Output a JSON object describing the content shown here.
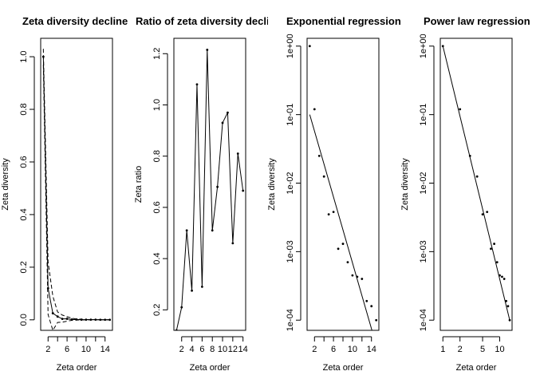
{
  "chart_data": [
    {
      "type": "line",
      "title": "Zeta diversity decline",
      "xlabel": "Zeta order",
      "ylabel": "Zeta diversity",
      "xlim": [
        0.44,
        15.56
      ],
      "ylim": [
        -0.04,
        1.07
      ],
      "yscale": "linear",
      "xticks": [
        2,
        4,
        6,
        8,
        10,
        12,
        14
      ],
      "xtick_labels": [
        "2",
        "6",
        "10",
        "14"
      ],
      "xtick_labeled": [
        2,
        6,
        10,
        14
      ],
      "yticks": [
        0.0,
        0.2,
        0.4,
        0.6,
        0.8,
        1.0
      ],
      "ytick_labels": [
        "0.0",
        "0.2",
        "0.4",
        "0.6",
        "0.8",
        "1.0"
      ],
      "series": [
        {
          "style": "solid",
          "points": true,
          "x": [
            1,
            2,
            3,
            4,
            5,
            6,
            7,
            8,
            9,
            10,
            11,
            12,
            13,
            14,
            15
          ],
          "y": [
            1.0,
            0.12,
            0.025,
            0.0125,
            0.0035,
            0.0038,
            0.0011,
            0.0013,
            0.0007,
            0.00045,
            0.00043,
            0.0004,
            0.00019,
            0.00016,
            0.0001
          ]
        },
        {
          "style": "dashed",
          "points": false,
          "x": [
            1,
            2,
            3,
            4,
            5,
            6,
            7,
            8,
            9,
            10,
            11,
            12,
            13,
            14,
            15
          ],
          "y": [
            1.03,
            0.22,
            0.09,
            0.03,
            0.018,
            0.012,
            0.006,
            0.003,
            0.002,
            0.001,
            0.0008,
            0.0006,
            0.0004,
            0.0003,
            0.0002
          ]
        },
        {
          "style": "dashed",
          "points": false,
          "x": [
            1,
            2,
            3,
            4,
            5,
            6,
            7,
            8,
            9,
            10,
            11,
            12,
            13,
            14,
            15
          ],
          "y": [
            0.97,
            0.02,
            -0.04,
            -0.01,
            -0.009,
            -0.005,
            -0.002,
            -0.001,
            -0.0005,
            -0.0002,
            -0.0001,
            0,
            0,
            0,
            0
          ]
        }
      ]
    },
    {
      "type": "line",
      "title": "Ratio of zeta diversity decline",
      "xlabel": "Zeta order",
      "ylabel": "Zeta ratio",
      "xlim": [
        0.48,
        14.52
      ],
      "ylim": [
        0.12,
        1.26
      ],
      "yscale": "linear",
      "xticks": [
        2,
        4,
        6,
        8,
        10,
        12,
        14
      ],
      "xtick_labels": [
        "2",
        "4",
        "6",
        "8",
        "10",
        "12",
        "14"
      ],
      "xtick_labeled": [
        2,
        4,
        6,
        8,
        10,
        12,
        14
      ],
      "yticks": [
        0.2,
        0.4,
        0.6,
        0.8,
        1.0,
        1.2
      ],
      "ytick_labels": [
        "0.2",
        "0.4",
        "0.6",
        "0.8",
        "1.0",
        "1.2"
      ],
      "series": [
        {
          "style": "solid",
          "points": true,
          "x": [
            1,
            2,
            3,
            4,
            5,
            6,
            7,
            8,
            9,
            10,
            11,
            12,
            13,
            14
          ],
          "y": [
            0.12,
            0.21,
            0.51,
            0.275,
            1.08,
            0.29,
            1.215,
            0.51,
            0.68,
            0.93,
            0.97,
            0.46,
            0.81,
            0.665
          ]
        }
      ]
    },
    {
      "type": "scatter",
      "title": "Exponential regression",
      "xlabel": "Zeta order",
      "ylabel": "Zeta diversity",
      "xlim": [
        0.44,
        15.56
      ],
      "ylim": [
        7.1e-05,
        1.3
      ],
      "yscale": "log",
      "xticks": [
        2,
        4,
        6,
        8,
        10,
        12,
        14
      ],
      "xtick_labels": [
        "2",
        "6",
        "10",
        "14"
      ],
      "xtick_labeled": [
        2,
        6,
        10,
        14
      ],
      "yticks": [
        0.0001,
        0.001,
        0.01,
        0.1,
        1
      ],
      "ytick_labels": [
        "1e-04",
        "1e-03",
        "1e-02",
        "1e-01",
        "1e+00"
      ],
      "series": [
        {
          "style": "points",
          "points": true,
          "x": [
            1,
            2,
            3,
            4,
            5,
            6,
            7,
            8,
            9,
            10,
            11,
            12,
            13,
            14,
            15
          ],
          "y": [
            1.0,
            0.12,
            0.025,
            0.0125,
            0.0035,
            0.0038,
            0.0011,
            0.0013,
            0.0007,
            0.00045,
            0.00043,
            0.0004,
            0.00019,
            0.00016,
            0.0001
          ]
        },
        {
          "style": "solid",
          "points": false,
          "x": [
            1,
            14.1
          ],
          "y": [
            0.1,
            7.1e-05
          ]
        }
      ]
    },
    {
      "type": "scatter",
      "title": "Power law regression",
      "xlabel": "Zeta order",
      "ylabel": "Zeta diversity",
      "xlim": [
        0.9,
        16.5
      ],
      "ylim": [
        7.1e-05,
        1.3
      ],
      "yscale": "log",
      "xscale": "log",
      "xticks": [
        1,
        2,
        5,
        10
      ],
      "xtick_labels": [
        "1",
        "2",
        "5",
        "10"
      ],
      "xtick_labeled": [
        1,
        2,
        5,
        10
      ],
      "yticks": [
        0.0001,
        0.001,
        0.01,
        0.1,
        1
      ],
      "ytick_labels": [
        "1e-04",
        "1e-03",
        "1e-02",
        "1e-01",
        "1e+00"
      ],
      "series": [
        {
          "style": "points",
          "points": true,
          "x": [
            1,
            2,
            3,
            4,
            5,
            6,
            7,
            8,
            9,
            10,
            11,
            12,
            13,
            14,
            15
          ],
          "y": [
            1.0,
            0.12,
            0.025,
            0.0125,
            0.0035,
            0.0038,
            0.0011,
            0.0013,
            0.0007,
            0.00045,
            0.00043,
            0.0004,
            0.00019,
            0.00016,
            0.0001
          ]
        },
        {
          "style": "solid",
          "points": false,
          "x": [
            1,
            15
          ],
          "y": [
            1.0,
            0.0001
          ]
        }
      ]
    }
  ]
}
